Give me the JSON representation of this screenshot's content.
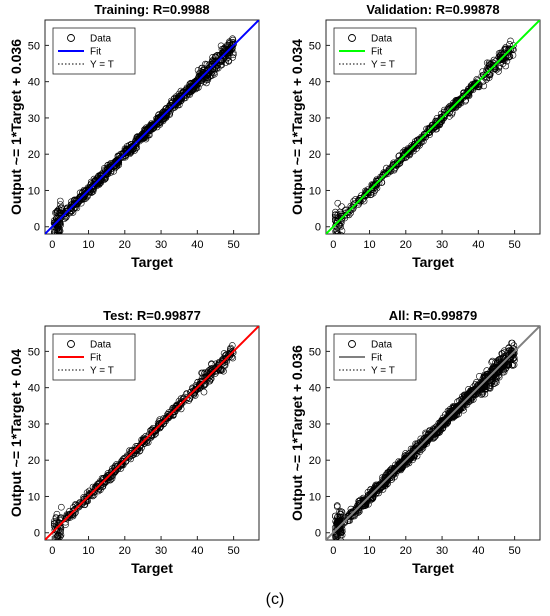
{
  "figure": {
    "caption": "(c)"
  },
  "chart_data": [
    {
      "type": "scatter",
      "title": "Training: R=0.9988",
      "xlabel": "Target",
      "ylabel": "Output ~= 1*Target + 0.036",
      "xlim": [
        -2,
        57
      ],
      "ylim": [
        -2,
        57
      ],
      "xticks": [
        0,
        10,
        20,
        30,
        40,
        50
      ],
      "yticks": [
        0,
        10,
        20,
        30,
        40,
        50
      ],
      "fit_color": "#0000ff",
      "fit": {
        "slope": 1,
        "intercept": 0.036
      },
      "legend": [
        "Data",
        "Fit",
        "Y = T"
      ],
      "legend_position": "top-left",
      "spread": 1.5,
      "density": 900
    },
    {
      "type": "scatter",
      "title": "Validation: R=0.99878",
      "xlabel": "Target",
      "ylabel": "Output ~= 1*Target + 0.034",
      "xlim": [
        -2,
        57
      ],
      "ylim": [
        -2,
        57
      ],
      "xticks": [
        0,
        10,
        20,
        30,
        40,
        50
      ],
      "yticks": [
        0,
        10,
        20,
        30,
        40,
        50
      ],
      "fit_color": "#00ff00",
      "fit": {
        "slope": 1,
        "intercept": 0.034
      },
      "legend": [
        "Data",
        "Fit",
        "Y = T"
      ],
      "legend_position": "top-left",
      "spread": 1.4,
      "density": 500
    },
    {
      "type": "scatter",
      "title": "Test: R=0.99877",
      "xlabel": "Target",
      "ylabel": "Output ~= 1*Target + 0.04",
      "xlim": [
        -2,
        57
      ],
      "ylim": [
        -2,
        57
      ],
      "xticks": [
        0,
        10,
        20,
        30,
        40,
        50
      ],
      "yticks": [
        0,
        10,
        20,
        30,
        40,
        50
      ],
      "fit_color": "#ff0000",
      "fit": {
        "slope": 1,
        "intercept": 0.04
      },
      "legend": [
        "Data",
        "Fit",
        "Y = T"
      ],
      "legend_position": "top-left",
      "spread": 1.4,
      "density": 500
    },
    {
      "type": "scatter",
      "title": "All: R=0.99879",
      "xlabel": "Target",
      "ylabel": "Output ~= 1*Target + 0.036",
      "xlim": [
        -2,
        57
      ],
      "ylim": [
        -2,
        57
      ],
      "xticks": [
        0,
        10,
        20,
        30,
        40,
        50
      ],
      "yticks": [
        0,
        10,
        20,
        30,
        40,
        50
      ],
      "fit_color": "#808080",
      "fit": {
        "slope": 1,
        "intercept": 0.036
      },
      "legend": [
        "Data",
        "Fit",
        "Y = T"
      ],
      "legend_position": "top-left",
      "spread": 1.6,
      "density": 1100
    }
  ]
}
